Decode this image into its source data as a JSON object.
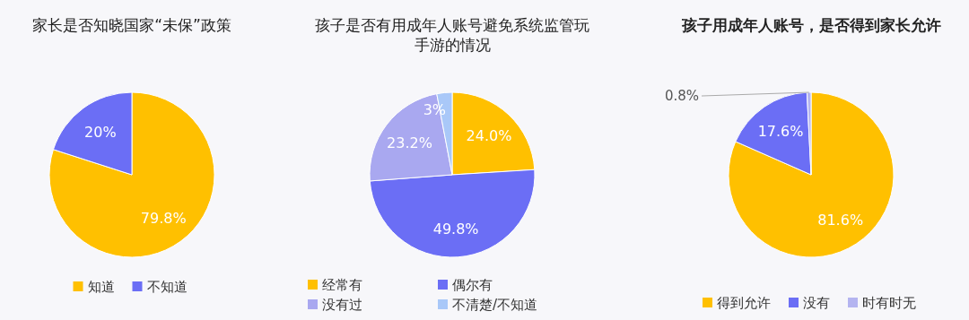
{
  "chart_data": [
    {
      "type": "pie",
      "title": "家长是否知晓国家“未保”政策",
      "categories": [
        "知道",
        "不知道"
      ],
      "values": [
        79.8,
        20
      ],
      "colors": [
        "#ffc000",
        "#6b6ef5"
      ],
      "value_labels": [
        "79.8%",
        "20%"
      ],
      "legend": "bottom"
    },
    {
      "type": "pie",
      "title": "孩子是否有用成年人账号避免系统监管玩手游的情况",
      "categories": [
        "经常有",
        "偶尔有",
        "没有过",
        "不清楚/不知道"
      ],
      "values": [
        24.0,
        49.8,
        23.2,
        3
      ],
      "colors": [
        "#ffc000",
        "#6b6ef5",
        "#a9a8f0",
        "#a9c8f8"
      ],
      "value_labels": [
        "24.0%",
        "49.8%",
        "23.2%",
        "3%"
      ],
      "legend": "bottom"
    },
    {
      "type": "pie",
      "title": "孩子用成年人账号，是否得到家长允许",
      "categories": [
        "得到允许",
        "没有",
        "时有时无"
      ],
      "values": [
        81.6,
        17.6,
        0.8
      ],
      "colors": [
        "#ffc000",
        "#6b6ef5",
        "#b4b4f0"
      ],
      "value_labels": [
        "81.6%",
        "17.6%",
        "0.8%"
      ],
      "legend": "bottom"
    }
  ]
}
